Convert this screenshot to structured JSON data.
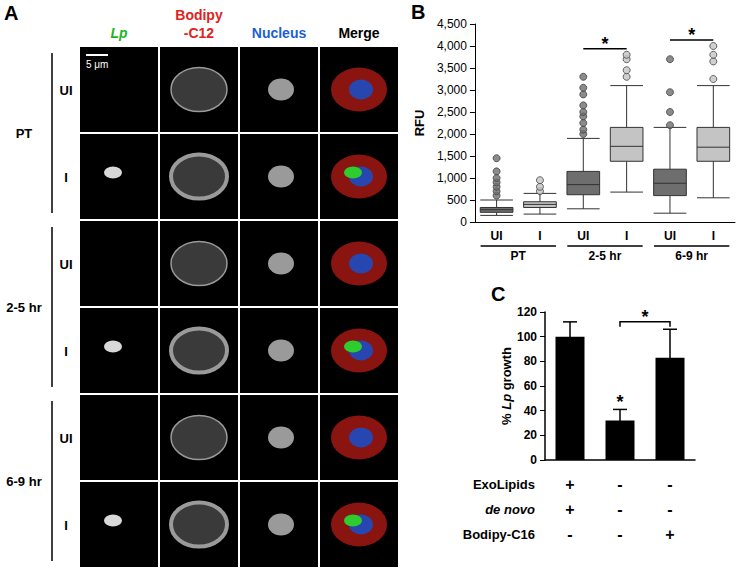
{
  "italic_terms": [
    "Lp",
    "de novo"
  ],
  "panel_a": {
    "label": "A",
    "columns": [
      {
        "text": "Lp",
        "color": "#22b522"
      },
      {
        "text": "Bodipy-C12",
        "color": "#e0221b"
      },
      {
        "text": "Nucleus",
        "color": "#1a5fd6"
      },
      {
        "text": "Merge",
        "color": "#000000"
      }
    ],
    "groups": [
      {
        "label": "PT",
        "rows": [
          "UI",
          "I"
        ]
      },
      {
        "label": "2-5 hr",
        "rows": [
          "UI",
          "I"
        ]
      },
      {
        "label": "6-9 hr",
        "rows": [
          "UI",
          "I"
        ]
      }
    ],
    "scale_bar": "5 μm"
  },
  "chart_data": [
    {
      "panel_label": "B",
      "type": "boxplot",
      "categories": [
        "UI",
        "I",
        "UI",
        "I",
        "UI",
        "I"
      ],
      "groups": [
        "PT",
        "2-5 hr",
        "6-9 hr"
      ],
      "boxes": [
        [
          150,
          220,
          280,
          330,
          500
        ],
        [
          180,
          330,
          400,
          460,
          650
        ],
        [
          300,
          620,
          850,
          1150,
          1900
        ],
        [
          680,
          1380,
          1720,
          2150,
          3100
        ],
        [
          200,
          600,
          880,
          1200,
          2150
        ],
        [
          550,
          1380,
          1700,
          2150,
          3100
        ]
      ],
      "outliers": [
        [
          600,
          700,
          800,
          900,
          1000,
          1150,
          1450
        ],
        [
          700,
          800,
          950
        ],
        [
          2000,
          2100,
          2250,
          2400,
          2500,
          2650,
          2900,
          3050,
          3300
        ],
        [
          3300,
          3450,
          3700,
          3800
        ],
        [
          2200,
          2500,
          2950,
          3700
        ],
        [
          3250,
          3650,
          3800,
          4000
        ]
      ],
      "colors": [
        "#6e6e6e",
        "#c4c4c4",
        "#6e6e6e",
        "#c4c4c4",
        "#6e6e6e",
        "#c4c4c4"
      ],
      "ylabel": "RFU",
      "ylim": [
        0,
        4500
      ],
      "yticks": [
        0,
        500,
        1000,
        1500,
        2000,
        2500,
        3000,
        3500,
        4000,
        4500
      ],
      "grid": false,
      "annotations": [
        {
          "pair": [
            2,
            3
          ],
          "text": "*"
        },
        {
          "pair": [
            4,
            5
          ],
          "text": "*"
        }
      ]
    },
    {
      "panel_label": "C",
      "type": "bar",
      "categories": [
        null,
        null,
        null
      ],
      "values": [
        100,
        32,
        83
      ],
      "errors": [
        12,
        9,
        23
      ],
      "color": "#000000",
      "ylabel": "% Lp growth",
      "ylim": [
        0,
        120
      ],
      "yticks": [
        0,
        20,
        40,
        60,
        80,
        100,
        120
      ],
      "grid": false,
      "tick_labels": "y",
      "conditions": [
        {
          "label": "ExoLipids",
          "marks": [
            "+",
            "-",
            "-"
          ]
        },
        {
          "label": "de novo",
          "marks": [
            "+",
            "-",
            "-"
          ]
        },
        {
          "label": "Bodipy-C16",
          "marks": [
            "-",
            "-",
            "+"
          ]
        }
      ],
      "annotations": [
        {
          "index": 1,
          "text": "*"
        },
        {
          "pair": [
            1,
            2
          ],
          "text": "*"
        }
      ]
    }
  ]
}
